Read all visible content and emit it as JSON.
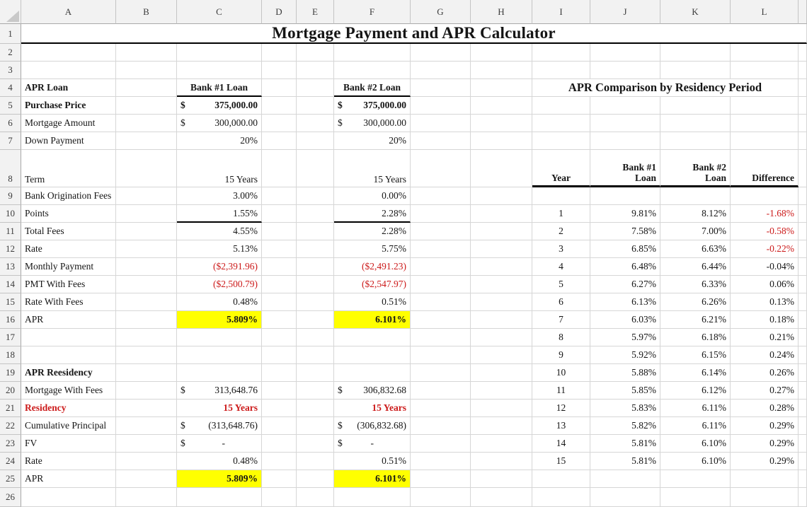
{
  "colors": {
    "highlight_yellow": "#ffff00",
    "negative_red": "#cc1a1a",
    "gridline": "#d6d6d6",
    "header_background": "#f2f2f2"
  },
  "grid": {
    "columns": [
      "A",
      "B",
      "C",
      "D",
      "E",
      "F",
      "G",
      "H",
      "I",
      "J",
      "K",
      "L",
      ""
    ],
    "rows": [
      {
        "n": 1,
        "cells": [
          {
            "c": "A",
            "span": 13,
            "t": "Mortgage Payment and APR Calculator",
            "a": "c",
            "b": 1,
            "cls": "sheet-title",
            "bb": "med"
          }
        ]
      },
      {
        "n": 2,
        "cells": []
      },
      {
        "n": 3,
        "cells": []
      },
      {
        "n": 4,
        "cells": [
          {
            "c": "A",
            "t": "APR Loan",
            "b": 1
          },
          {
            "c": "C",
            "t": "Bank #1 Loan",
            "b": 1,
            "a": "c",
            "bb": "med"
          },
          {
            "c": "F",
            "t": "Bank #2 Loan",
            "b": 1,
            "a": "c",
            "bb": "med"
          },
          {
            "c": "I",
            "span": 4,
            "t": "APR Comparison by Residency Period",
            "b": 1,
            "a": "c",
            "cls": "section-title"
          }
        ]
      },
      {
        "n": 5,
        "cells": [
          {
            "c": "A",
            "t": "Purchase Price",
            "b": 1
          },
          {
            "c": "C",
            "pre": "$",
            "t": "375,000.00",
            "b": 1
          },
          {
            "c": "F",
            "pre": "$",
            "t": "375,000.00",
            "b": 1
          }
        ]
      },
      {
        "n": 6,
        "cells": [
          {
            "c": "A",
            "t": "Mortgage Amount"
          },
          {
            "c": "C",
            "pre": "$",
            "t": "300,000.00"
          },
          {
            "c": "F",
            "pre": "$",
            "t": "300,000.00"
          }
        ]
      },
      {
        "n": 7,
        "cells": [
          {
            "c": "A",
            "t": "Down Payment"
          },
          {
            "c": "C",
            "t": "20%",
            "a": "r"
          },
          {
            "c": "F",
            "t": "20%",
            "a": "r"
          }
        ]
      },
      {
        "n": 8,
        "bottom_align": 1,
        "cells": [
          {
            "c": "A",
            "t": "Term"
          },
          {
            "c": "C",
            "t": "15 Years",
            "a": "r"
          },
          {
            "c": "F",
            "t": "15 Years",
            "a": "r"
          },
          {
            "c": "I",
            "t": "Year",
            "b": 1,
            "a": "c",
            "bb": "thick"
          },
          {
            "c": "J",
            "t": "Bank #1\nLoan",
            "b": 1,
            "a": "r",
            "ml": 1,
            "bb": "thick"
          },
          {
            "c": "K",
            "t": "Bank #2\nLoan",
            "b": 1,
            "a": "r",
            "ml": 1,
            "bb": "thick"
          },
          {
            "c": "L",
            "t": "Difference",
            "b": 1,
            "a": "r",
            "bb": "thick"
          }
        ]
      },
      {
        "n": 9,
        "cells": [
          {
            "c": "A",
            "t": "Bank Origination Fees"
          },
          {
            "c": "C",
            "t": "3.00%",
            "a": "r"
          },
          {
            "c": "F",
            "t": "0.00%",
            "a": "r"
          }
        ]
      },
      {
        "n": 10,
        "cells": [
          {
            "c": "A",
            "t": "Points"
          },
          {
            "c": "C",
            "t": "1.55%",
            "a": "r",
            "bb": "med"
          },
          {
            "c": "F",
            "t": "2.28%",
            "a": "r",
            "bb": "med"
          },
          {
            "c": "I",
            "t": "1",
            "a": "c"
          },
          {
            "c": "J",
            "t": "9.81%",
            "a": "r"
          },
          {
            "c": "K",
            "t": "8.12%",
            "a": "r"
          },
          {
            "c": "L",
            "t": "-1.68%",
            "a": "r",
            "red": 1
          }
        ]
      },
      {
        "n": 11,
        "cells": [
          {
            "c": "A",
            "t": "Total Fees"
          },
          {
            "c": "C",
            "t": "4.55%",
            "a": "r"
          },
          {
            "c": "F",
            "t": "2.28%",
            "a": "r"
          },
          {
            "c": "I",
            "t": "2",
            "a": "c"
          },
          {
            "c": "J",
            "t": "7.58%",
            "a": "r"
          },
          {
            "c": "K",
            "t": "7.00%",
            "a": "r"
          },
          {
            "c": "L",
            "t": "-0.58%",
            "a": "r",
            "red": 1
          }
        ]
      },
      {
        "n": 12,
        "cells": [
          {
            "c": "A",
            "t": "Rate"
          },
          {
            "c": "C",
            "t": "5.13%",
            "a": "r"
          },
          {
            "c": "F",
            "t": "5.75%",
            "a": "r"
          },
          {
            "c": "I",
            "t": "3",
            "a": "c"
          },
          {
            "c": "J",
            "t": "6.85%",
            "a": "r"
          },
          {
            "c": "K",
            "t": "6.63%",
            "a": "r"
          },
          {
            "c": "L",
            "t": "-0.22%",
            "a": "r",
            "red": 1
          }
        ]
      },
      {
        "n": 13,
        "cells": [
          {
            "c": "A",
            "t": "Monthly Payment"
          },
          {
            "c": "C",
            "t": "($2,391.96)",
            "a": "r",
            "red": 1
          },
          {
            "c": "F",
            "t": "($2,491.23)",
            "a": "r",
            "red": 1
          },
          {
            "c": "I",
            "t": "4",
            "a": "c"
          },
          {
            "c": "J",
            "t": "6.48%",
            "a": "r"
          },
          {
            "c": "K",
            "t": "6.44%",
            "a": "r"
          },
          {
            "c": "L",
            "t": "-0.04%",
            "a": "r"
          }
        ]
      },
      {
        "n": 14,
        "cells": [
          {
            "c": "A",
            "t": "PMT With Fees"
          },
          {
            "c": "C",
            "t": "($2,500.79)",
            "a": "r",
            "red": 1
          },
          {
            "c": "F",
            "t": "($2,547.97)",
            "a": "r",
            "red": 1
          },
          {
            "c": "I",
            "t": "5",
            "a": "c"
          },
          {
            "c": "J",
            "t": "6.27%",
            "a": "r"
          },
          {
            "c": "K",
            "t": "6.33%",
            "a": "r"
          },
          {
            "c": "L",
            "t": "0.06%",
            "a": "r"
          }
        ]
      },
      {
        "n": 15,
        "cells": [
          {
            "c": "A",
            "t": "Rate With Fees"
          },
          {
            "c": "C",
            "t": "0.48%",
            "a": "r"
          },
          {
            "c": "F",
            "t": "0.51%",
            "a": "r"
          },
          {
            "c": "I",
            "t": "6",
            "a": "c"
          },
          {
            "c": "J",
            "t": "6.13%",
            "a": "r"
          },
          {
            "c": "K",
            "t": "6.26%",
            "a": "r"
          },
          {
            "c": "L",
            "t": "0.13%",
            "a": "r"
          }
        ]
      },
      {
        "n": 16,
        "cells": [
          {
            "c": "A",
            "t": "APR"
          },
          {
            "c": "C",
            "t": "5.809%",
            "a": "r",
            "b": 1,
            "yel": 1
          },
          {
            "c": "F",
            "t": "6.101%",
            "a": "r",
            "b": 1,
            "yel": 1
          },
          {
            "c": "I",
            "t": "7",
            "a": "c"
          },
          {
            "c": "J",
            "t": "6.03%",
            "a": "r"
          },
          {
            "c": "K",
            "t": "6.21%",
            "a": "r"
          },
          {
            "c": "L",
            "t": "0.18%",
            "a": "r"
          }
        ]
      },
      {
        "n": 17,
        "cells": [
          {
            "c": "I",
            "t": "8",
            "a": "c"
          },
          {
            "c": "J",
            "t": "5.97%",
            "a": "r"
          },
          {
            "c": "K",
            "t": "6.18%",
            "a": "r"
          },
          {
            "c": "L",
            "t": "0.21%",
            "a": "r"
          }
        ]
      },
      {
        "n": 18,
        "cells": [
          {
            "c": "I",
            "t": "9",
            "a": "c"
          },
          {
            "c": "J",
            "t": "5.92%",
            "a": "r"
          },
          {
            "c": "K",
            "t": "6.15%",
            "a": "r"
          },
          {
            "c": "L",
            "t": "0.24%",
            "a": "r"
          }
        ]
      },
      {
        "n": 19,
        "cells": [
          {
            "c": "A",
            "t": "APR Reesidency",
            "b": 1
          },
          {
            "c": "I",
            "t": "10",
            "a": "c"
          },
          {
            "c": "J",
            "t": "5.88%",
            "a": "r"
          },
          {
            "c": "K",
            "t": "6.14%",
            "a": "r"
          },
          {
            "c": "L",
            "t": "0.26%",
            "a": "r"
          }
        ]
      },
      {
        "n": 20,
        "cells": [
          {
            "c": "A",
            "t": "Mortgage With Fees"
          },
          {
            "c": "C",
            "pre": "$",
            "t": "313,648.76"
          },
          {
            "c": "F",
            "pre": "$",
            "t": "306,832.68"
          },
          {
            "c": "I",
            "t": "11",
            "a": "c"
          },
          {
            "c": "J",
            "t": "5.85%",
            "a": "r"
          },
          {
            "c": "K",
            "t": "6.12%",
            "a": "r"
          },
          {
            "c": "L",
            "t": "0.27%",
            "a": "r"
          }
        ]
      },
      {
        "n": 21,
        "cells": [
          {
            "c": "A",
            "t": "Residency",
            "b": 1,
            "red": 1
          },
          {
            "c": "C",
            "t": "15 Years",
            "a": "r",
            "b": 1,
            "red": 1
          },
          {
            "c": "F",
            "t": "15 Years",
            "a": "r",
            "b": 1,
            "red": 1
          },
          {
            "c": "I",
            "t": "12",
            "a": "c"
          },
          {
            "c": "J",
            "t": "5.83%",
            "a": "r"
          },
          {
            "c": "K",
            "t": "6.11%",
            "a": "r"
          },
          {
            "c": "L",
            "t": "0.28%",
            "a": "r"
          }
        ]
      },
      {
        "n": 22,
        "cells": [
          {
            "c": "A",
            "t": "Cumulative Principal"
          },
          {
            "c": "C",
            "pre": "$",
            "t": "(313,648.76)"
          },
          {
            "c": "F",
            "pre": "$",
            "t": "(306,832.68)"
          },
          {
            "c": "I",
            "t": "13",
            "a": "c"
          },
          {
            "c": "J",
            "t": "5.82%",
            "a": "r"
          },
          {
            "c": "K",
            "t": "6.11%",
            "a": "r"
          },
          {
            "c": "L",
            "t": "0.29%",
            "a": "r"
          }
        ]
      },
      {
        "n": 23,
        "cells": [
          {
            "c": "A",
            "t": "FV"
          },
          {
            "c": "C",
            "pre": "$",
            "t": "-",
            "dash": 1
          },
          {
            "c": "F",
            "pre": "$",
            "t": "-",
            "dash": 1
          },
          {
            "c": "I",
            "t": "14",
            "a": "c"
          },
          {
            "c": "J",
            "t": "5.81%",
            "a": "r"
          },
          {
            "c": "K",
            "t": "6.10%",
            "a": "r"
          },
          {
            "c": "L",
            "t": "0.29%",
            "a": "r"
          }
        ]
      },
      {
        "n": 24,
        "cells": [
          {
            "c": "A",
            "t": "Rate"
          },
          {
            "c": "C",
            "t": "0.48%",
            "a": "r"
          },
          {
            "c": "F",
            "t": "0.51%",
            "a": "r"
          },
          {
            "c": "I",
            "t": "15",
            "a": "c"
          },
          {
            "c": "J",
            "t": "5.81%",
            "a": "r"
          },
          {
            "c": "K",
            "t": "6.10%",
            "a": "r"
          },
          {
            "c": "L",
            "t": "0.29%",
            "a": "r"
          }
        ]
      },
      {
        "n": 25,
        "cells": [
          {
            "c": "A",
            "t": "APR"
          },
          {
            "c": "C",
            "t": "5.809%",
            "a": "r",
            "b": 1,
            "yel": 1
          },
          {
            "c": "F",
            "t": "6.101%",
            "a": "r",
            "b": 1,
            "yel": 1
          }
        ]
      },
      {
        "n": 26,
        "cells": []
      }
    ]
  }
}
